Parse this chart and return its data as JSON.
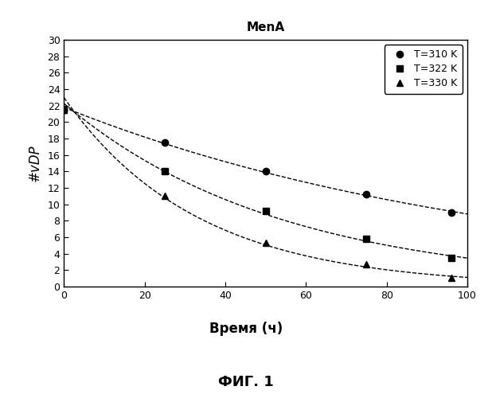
{
  "title": "MenA",
  "xlabel": "Время (ч)",
  "ylabel": "#vDP",
  "fig_label": "ФИГ. 1",
  "xlim": [
    0,
    100
  ],
  "ylim": [
    0,
    30
  ],
  "xticks": [
    0,
    20,
    40,
    60,
    80,
    100
  ],
  "yticks": [
    0,
    2,
    4,
    6,
    8,
    10,
    12,
    14,
    16,
    18,
    20,
    22,
    24,
    26,
    28,
    30
  ],
  "series": [
    {
      "label": "T=310 K",
      "marker": "o",
      "x": [
        0,
        25,
        50,
        75,
        96
      ],
      "y": [
        21.5,
        17.5,
        14.0,
        11.2,
        9.0
      ]
    },
    {
      "label": "T=322 K",
      "marker": "s",
      "x": [
        0,
        25,
        50,
        75,
        96
      ],
      "y": [
        21.5,
        14.0,
        9.2,
        5.8,
        3.5
      ]
    },
    {
      "label": "T=330 K",
      "marker": "^",
      "x": [
        0,
        25,
        50,
        75,
        96
      ],
      "y": [
        21.5,
        11.0,
        5.3,
        2.7,
        1.1
      ]
    }
  ],
  "background_color": "#ffffff",
  "line_color": "#000000",
  "marker_color": "#000000",
  "title_fontsize": 11,
  "label_fontsize": 12,
  "tick_fontsize": 9,
  "legend_fontsize": 9,
  "fig_label_fontsize": 13
}
